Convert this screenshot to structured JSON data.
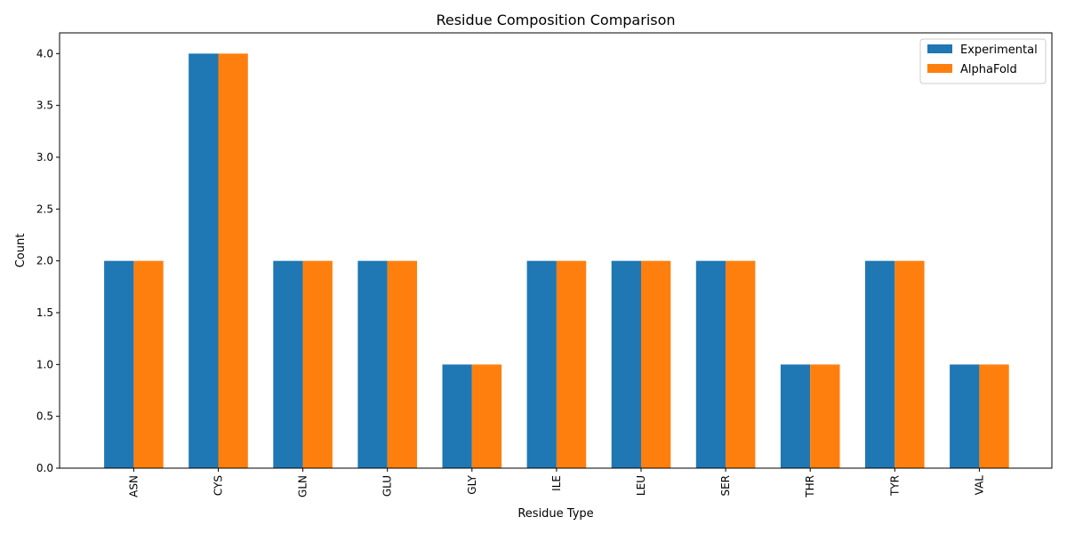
{
  "chart_data": {
    "type": "bar",
    "title": "Residue Composition Comparison",
    "xlabel": "Residue Type",
    "ylabel": "Count",
    "categories": [
      "ASN",
      "CYS",
      "GLN",
      "GLU",
      "GLY",
      "ILE",
      "LEU",
      "SER",
      "THR",
      "TYR",
      "VAL"
    ],
    "series": [
      {
        "name": "Experimental",
        "color": "#1f77b4",
        "values": [
          2,
          4,
          2,
          2,
          1,
          2,
          2,
          2,
          1,
          2,
          1
        ]
      },
      {
        "name": "AlphaFold",
        "color": "#ff7f0e",
        "values": [
          2,
          4,
          2,
          2,
          1,
          2,
          2,
          2,
          1,
          2,
          1
        ]
      }
    ],
    "ylim": [
      0,
      4.2
    ],
    "yticks": [
      "0.0",
      "0.5",
      "1.0",
      "1.5",
      "2.0",
      "2.5",
      "3.0",
      "3.5",
      "4.0"
    ],
    "grid": false,
    "legend_position": "top-right"
  }
}
